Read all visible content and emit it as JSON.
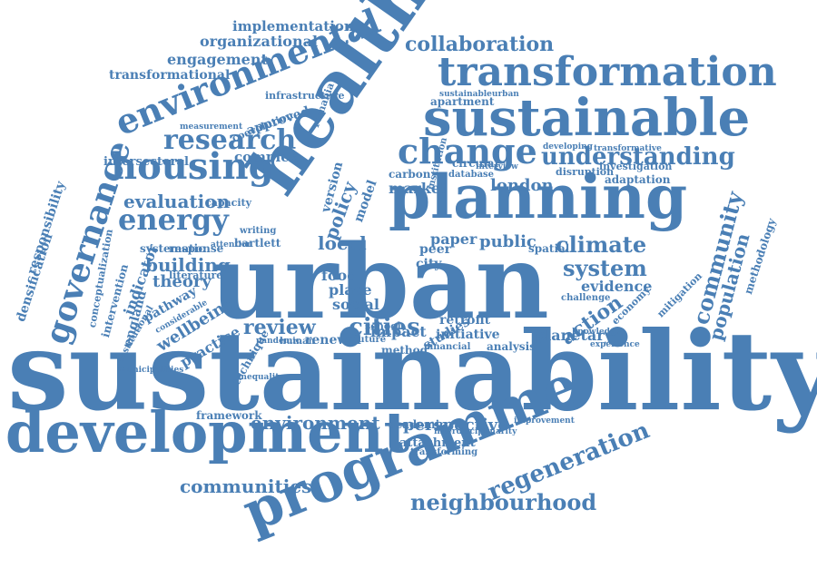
{
  "colors": {
    "word": "#4a7fb5",
    "background": "#ffffff"
  },
  "words": [
    "sustainability",
    "urban",
    "development",
    "programme",
    "health",
    "planning",
    "sustainable",
    "transformation",
    "environmental",
    "governance",
    "housing",
    "change",
    "energy",
    "research",
    "understanding",
    "collaboration",
    "communities",
    "neighbourhood",
    "regeneration",
    "environment",
    "cities",
    "review",
    "system",
    "climate",
    "community",
    "population",
    "perspective",
    "engagement",
    "organizational",
    "implementation",
    "transformational",
    "evaluation",
    "intersectoral",
    "complex",
    "approved",
    "infrastructure",
    "building",
    "theory",
    "indicator",
    "wellbeing",
    "practice",
    "pathway",
    "england",
    "intervention",
    "densification",
    "responsibility",
    "conceptualization",
    "london",
    "market",
    "carbon",
    "local",
    "policy",
    "model",
    "version",
    "food",
    "place",
    "social",
    "impact",
    "method",
    "renewal",
    "retrofit",
    "initiative",
    "evidence",
    "action",
    "planetary",
    "methodology",
    "adaptation",
    "investigation",
    "disruption",
    "mitigation",
    "attachment",
    "transforming",
    "academic",
    "financial",
    "framework",
    "public",
    "paper",
    "peer",
    "spatial",
    "circular",
    "apartment",
    "economy",
    "studies",
    "analysis",
    "school",
    "future",
    "human",
    "technique",
    "systematic",
    "response",
    "bartlett",
    "literature",
    "coevolution",
    "romania",
    "measurement",
    "capacity",
    "writing",
    "attention",
    "improvement",
    "interdisciplinarity",
    "sustainableurban",
    "experience",
    "knowledge",
    "developing",
    "transformative",
    "institution",
    "city",
    "database",
    "interview",
    "considerable",
    "institutional",
    "municipalities",
    "challenge",
    "inequality",
    "pandemic"
  ]
}
